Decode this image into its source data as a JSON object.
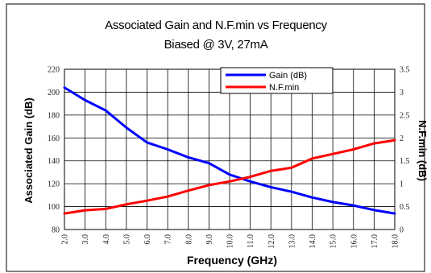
{
  "chart_data": {
    "type": "line",
    "title": "Associated Gain and N.F.min vs Frequency",
    "subtitle": "Biased @ 3V, 27mA",
    "xlabel": "Frequency (GHz)",
    "ylabel_left": "Associated Gain (dB)",
    "ylabel_right": "N.F.min (dB)",
    "x_ticks": [
      "2.0",
      "3.0",
      "4.0",
      "5.0",
      "6.0",
      "7.0",
      "8.0",
      "9.0",
      "10.0",
      "11.0",
      "12.0",
      "13.0",
      "14.0",
      "15.0",
      "16.0",
      "17.0",
      "18.0"
    ],
    "xlim": [
      2,
      18
    ],
    "ylim_left": [
      80,
      220
    ],
    "ylim_right": [
      0,
      3.5
    ],
    "y_ticks_left": [
      "80",
      "100",
      "120",
      "140",
      "160",
      "180",
      "200",
      "220"
    ],
    "y_ticks_right": [
      "0",
      "0.5",
      "1",
      "1.5",
      "2",
      "2.5",
      "3",
      "3.5"
    ],
    "grid": true,
    "legend_position": "top-right",
    "series": [
      {
        "name": "Gain (dB)",
        "axis": "left",
        "color": "#0000ff",
        "x": [
          2,
          3,
          4,
          5,
          6,
          7,
          8,
          9,
          10,
          11,
          12,
          13,
          14,
          15,
          16,
          17,
          18
        ],
        "values": [
          204,
          193,
          184,
          169,
          156,
          150,
          143,
          138,
          128,
          122,
          117,
          113,
          108,
          104,
          101,
          97,
          94
        ]
      },
      {
        "name": "N.F.min",
        "axis": "right",
        "color": "#ff0000",
        "x": [
          2,
          3,
          4,
          5,
          6,
          7,
          8,
          9,
          10,
          11,
          12,
          13,
          14,
          15,
          16,
          17,
          18
        ],
        "values": [
          0.35,
          0.42,
          0.45,
          0.55,
          0.63,
          0.72,
          0.85,
          0.97,
          1.05,
          1.15,
          1.28,
          1.35,
          1.55,
          1.65,
          1.75,
          1.88,
          1.95
        ]
      }
    ]
  }
}
